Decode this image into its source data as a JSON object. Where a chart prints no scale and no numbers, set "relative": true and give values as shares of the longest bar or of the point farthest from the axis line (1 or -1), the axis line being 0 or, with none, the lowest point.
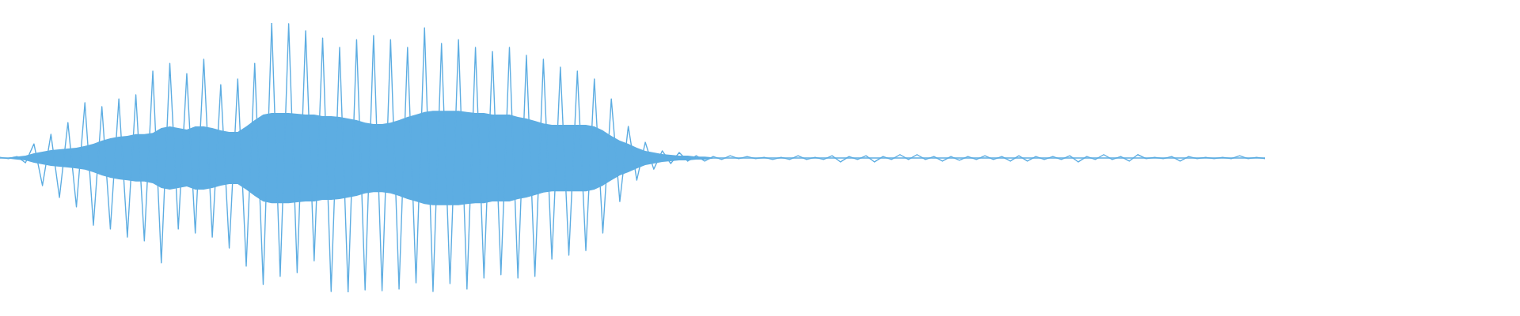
{
  "chart_data": {
    "type": "line",
    "relative": true,
    "categories": [
      null,
      null,
      null,
      null,
      null,
      null,
      null,
      null,
      null,
      null,
      null,
      null,
      null,
      null,
      null,
      null,
      null,
      null,
      null,
      null,
      null,
      null,
      null,
      null,
      null,
      null,
      null,
      null,
      null,
      null,
      null,
      null,
      null,
      null,
      null,
      null,
      null,
      null,
      null,
      null,
      null,
      null,
      null,
      null,
      null,
      null,
      null,
      null,
      null,
      null,
      null,
      null,
      null,
      null,
      null,
      null,
      null,
      null,
      null,
      null,
      null,
      null,
      null,
      null,
      null,
      null,
      null,
      null,
      null,
      null,
      null,
      null,
      null,
      null,
      null,
      null,
      null,
      null,
      null,
      null,
      null,
      null,
      null,
      null,
      null,
      null,
      null,
      null,
      null,
      null,
      null,
      null,
      null,
      null,
      null,
      null,
      null,
      null,
      null,
      null,
      null,
      null,
      null,
      null,
      null,
      null,
      null,
      null,
      null,
      null,
      null,
      null,
      null,
      null,
      null,
      null,
      null,
      null,
      null,
      null,
      null,
      null,
      null,
      null,
      null,
      null,
      null,
      null,
      null,
      null,
      null,
      null,
      null,
      null,
      null,
      null,
      null,
      null,
      null,
      null,
      null,
      null,
      null,
      null,
      null,
      null,
      null,
      null,
      null,
      null
    ],
    "series": [
      {
        "color": "#5dade2",
        "values": [
          0.501,
          0.496,
          0.504,
          0.481,
          0.551,
          0.396,
          0.587,
          0.352,
          0.63,
          0.317,
          0.704,
          0.249,
          0.689,
          0.235,
          0.718,
          0.205,
          0.733,
          0.191,
          0.821,
          0.109,
          0.85,
          0.235,
          0.812,
          0.22,
          0.865,
          0.205,
          0.771,
          0.164,
          0.792,
          0.097,
          0.85,
          0.029,
          1.0,
          0.059,
          0.997,
          0.073,
          0.971,
          0.117,
          0.944,
          0.003,
          0.909,
          0,
          0.938,
          0.009,
          0.953,
          0.006,
          0.938,
          0.012,
          0.909,
          0.035,
          0.982,
          0.003,
          0.924,
          0.032,
          0.938,
          0.012,
          0.909,
          0.053,
          0.894,
          0.065,
          0.909,
          0.053,
          0.88,
          0.059,
          0.865,
          0.123,
          0.836,
          0.138,
          0.821,
          0.155,
          0.792,
          0.22,
          0.718,
          0.337,
          0.616,
          0.416,
          0.557,
          0.457,
          0.525,
          0.478,
          0.519,
          0.487,
          0.507,
          0.487,
          0.504,
          0.493,
          0.507,
          0.496,
          0.504,
          0.496,
          0.501,
          0.493,
          0.501,
          0.493,
          0.507,
          0.493,
          0.501,
          0.493,
          0.507,
          0.484,
          0.504,
          0.493,
          0.507,
          0.484,
          0.504,
          0.493,
          0.511,
          0.493,
          0.511,
          0.493,
          0.504,
          0.487,
          0.504,
          0.49,
          0.504,
          0.493,
          0.507,
          0.493,
          0.504,
          0.487,
          0.507,
          0.487,
          0.504,
          0.493,
          0.504,
          0.493,
          0.507,
          0.484,
          0.504,
          0.493,
          0.511,
          0.493,
          0.504,
          0.487,
          0.511,
          0.496,
          0.501,
          0.496,
          0.504,
          0.487,
          0.504,
          0.496,
          0.501,
          0.496,
          0.501,
          0.496,
          0.507,
          0.496,
          0.501,
          0.496
        ],
        "upper": [
          0.501,
          0.501,
          0.504,
          0.507,
          0.516,
          0.522,
          0.528,
          0.531,
          0.534,
          0.537,
          0.543,
          0.551,
          0.563,
          0.572,
          0.578,
          0.581,
          0.587,
          0.587,
          0.592,
          0.61,
          0.616,
          0.61,
          0.604,
          0.616,
          0.616,
          0.61,
          0.601,
          0.595,
          0.595,
          0.616,
          0.639,
          0.66,
          0.666,
          0.666,
          0.666,
          0.663,
          0.66,
          0.66,
          0.654,
          0.654,
          0.651,
          0.645,
          0.639,
          0.63,
          0.625,
          0.625,
          0.63,
          0.639,
          0.651,
          0.66,
          0.669,
          0.674,
          0.674,
          0.674,
          0.674,
          0.669,
          0.666,
          0.666,
          0.66,
          0.66,
          0.66,
          0.651,
          0.645,
          0.636,
          0.627,
          0.622,
          0.622,
          0.622,
          0.622,
          0.622,
          0.616,
          0.601,
          0.581,
          0.563,
          0.551,
          0.537,
          0.525,
          0.519,
          0.513,
          0.51,
          0.507,
          0.507,
          0.504,
          0.504,
          0.501,
          0.501,
          0.501,
          0.501,
          0.501,
          0.501,
          0.501,
          0.501,
          0.501,
          0.501,
          0.501,
          0.501,
          0.501,
          0.501,
          0.501,
          0.501,
          0.501,
          0.501,
          0.501,
          0.501,
          0.501,
          0.501,
          0.501,
          0.501,
          0.501,
          0.501,
          0.501,
          0.501,
          0.501,
          0.501,
          0.501,
          0.501,
          0.501,
          0.501,
          0.501,
          0.501,
          0.501,
          0.501,
          0.501,
          0.501,
          0.501,
          0.501,
          0.501,
          0.501,
          0.501,
          0.501,
          0.501,
          0.501,
          0.501,
          0.501,
          0.501,
          0.501,
          0.501,
          0.501,
          0.501,
          0.501,
          0.501,
          0.501,
          0.501,
          0.501,
          0.501,
          0.501,
          0.501,
          0.501,
          0.501,
          0.501
        ],
        "lower": [
          0.496,
          0.496,
          0.493,
          0.49,
          0.481,
          0.475,
          0.469,
          0.466,
          0.463,
          0.46,
          0.455,
          0.446,
          0.434,
          0.425,
          0.419,
          0.416,
          0.411,
          0.411,
          0.405,
          0.387,
          0.381,
          0.387,
          0.393,
          0.381,
          0.381,
          0.387,
          0.396,
          0.402,
          0.402,
          0.381,
          0.358,
          0.337,
          0.331,
          0.331,
          0.331,
          0.334,
          0.337,
          0.337,
          0.343,
          0.343,
          0.346,
          0.352,
          0.358,
          0.367,
          0.372,
          0.372,
          0.367,
          0.358,
          0.346,
          0.337,
          0.328,
          0.323,
          0.323,
          0.323,
          0.323,
          0.328,
          0.331,
          0.331,
          0.337,
          0.337,
          0.337,
          0.346,
          0.352,
          0.361,
          0.37,
          0.375,
          0.375,
          0.375,
          0.375,
          0.375,
          0.381,
          0.396,
          0.416,
          0.434,
          0.446,
          0.46,
          0.472,
          0.478,
          0.484,
          0.487,
          0.49,
          0.49,
          0.493,
          0.493,
          0.496,
          0.496,
          0.496,
          0.496,
          0.496,
          0.496,
          0.496,
          0.496,
          0.496,
          0.496,
          0.496,
          0.496,
          0.496,
          0.496,
          0.496,
          0.496,
          0.496,
          0.496,
          0.496,
          0.496,
          0.496,
          0.496,
          0.496,
          0.496,
          0.496,
          0.496,
          0.496,
          0.496,
          0.496,
          0.496,
          0.496,
          0.496,
          0.496,
          0.496,
          0.496,
          0.496,
          0.496,
          0.496,
          0.496,
          0.496,
          0.496,
          0.496,
          0.496,
          0.496,
          0.496,
          0.496,
          0.496,
          0.496,
          0.496,
          0.496,
          0.496,
          0.496,
          0.496,
          0.496,
          0.496,
          0.496,
          0.496,
          0.496,
          0.496,
          0.496,
          0.496,
          0.496,
          0.496,
          0.496,
          0.496,
          0.496
        ]
      }
    ]
  }
}
